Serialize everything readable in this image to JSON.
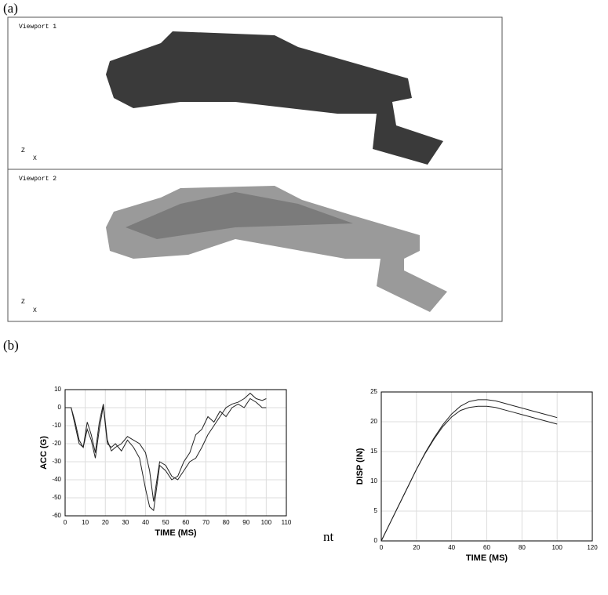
{
  "panel_labels": [
    "(a)",
    "(b)"
  ],
  "viewports": [
    {
      "label": "Viewport 1",
      "axis_z": "Z",
      "axis_x": "X"
    },
    {
      "label": "Viewport 2",
      "axis_z": "Z",
      "axis_x": "X"
    }
  ],
  "stray_text": "nt",
  "chart_data": [
    {
      "type": "line",
      "xlabel": "TIME (MS)",
      "ylabel": "ACC (G)",
      "grid": true,
      "xlim": [
        0,
        110
      ],
      "xticks": [
        0,
        10,
        20,
        30,
        40,
        50,
        60,
        70,
        80,
        90,
        100,
        110
      ],
      "ylim": [
        -60,
        10
      ],
      "yticks": [
        -60,
        -50,
        -40,
        -30,
        -20,
        -10,
        0,
        10
      ],
      "x": [
        0,
        3,
        5,
        7,
        9,
        11,
        13,
        15,
        17,
        19,
        21,
        23,
        25,
        28,
        31,
        34,
        37,
        40,
        42,
        44,
        47,
        50,
        53,
        56,
        59,
        62,
        65,
        68,
        71,
        74,
        77,
        80,
        83,
        86,
        89,
        92,
        95,
        98,
        100
      ],
      "series": [
        {
          "color": "#222222",
          "values": [
            0,
            0,
            -10,
            -20,
            -22,
            -12,
            -18,
            -28,
            -12,
            1,
            -20,
            -22,
            -20,
            -24,
            -18,
            -22,
            -28,
            -45,
            -55,
            -57,
            -32,
            -35,
            -40,
            -38,
            -30,
            -25,
            -15,
            -12,
            -5,
            -8,
            -2,
            -5,
            0,
            2,
            0,
            5,
            3,
            0,
            0
          ]
        },
        {
          "color": "#222222",
          "values": [
            0,
            0,
            -8,
            -18,
            -22,
            -8,
            -15,
            -25,
            -8,
            2,
            -18,
            -24,
            -22,
            -20,
            -16,
            -18,
            -20,
            -25,
            -35,
            -52,
            -30,
            -32,
            -38,
            -40,
            -35,
            -30,
            -28,
            -22,
            -15,
            -10,
            -5,
            0,
            2,
            3,
            5,
            8,
            5,
            4,
            5
          ]
        }
      ]
    },
    {
      "type": "line",
      "xlabel": "TIME (MS)",
      "ylabel": "DISP (IN)",
      "grid": true,
      "xlim": [
        0,
        120
      ],
      "xticks": [
        0,
        20,
        40,
        60,
        80,
        100,
        120
      ],
      "ylim": [
        0,
        25
      ],
      "yticks": [
        0,
        5,
        10,
        15,
        20,
        25
      ],
      "x": [
        0,
        5,
        10,
        15,
        20,
        25,
        30,
        35,
        40,
        45,
        50,
        55,
        60,
        65,
        70,
        75,
        80,
        85,
        90,
        95,
        100
      ],
      "series": [
        {
          "color": "#222222",
          "values": [
            0,
            3,
            6,
            9,
            12,
            14.8,
            17.3,
            19.5,
            21.3,
            22.6,
            23.4,
            23.7,
            23.7,
            23.5,
            23.1,
            22.7,
            22.3,
            21.9,
            21.5,
            21.1,
            20.7
          ]
        },
        {
          "color": "#222222",
          "values": [
            0,
            3,
            6,
            9,
            12,
            14.7,
            17.1,
            19.2,
            20.8,
            21.9,
            22.4,
            22.6,
            22.6,
            22.4,
            22,
            21.6,
            21.2,
            20.8,
            20.4,
            20,
            19.6
          ]
        }
      ]
    }
  ]
}
